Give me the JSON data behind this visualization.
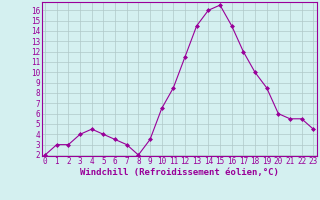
{
  "x": [
    0,
    1,
    2,
    3,
    4,
    5,
    6,
    7,
    8,
    9,
    10,
    11,
    12,
    13,
    14,
    15,
    16,
    17,
    18,
    19,
    20,
    21,
    22,
    23
  ],
  "y": [
    2,
    3,
    3,
    4,
    4.5,
    4,
    3.5,
    3,
    2,
    3.5,
    6.5,
    8.5,
    11.5,
    14.5,
    16,
    16.5,
    14.5,
    12,
    10,
    8.5,
    6,
    5.5,
    5.5,
    4.5
  ],
  "line_color": "#990099",
  "marker": "D",
  "marker_size": 2,
  "bg_color": "#d4f0f0",
  "grid_color": "#b0c8c8",
  "xlabel": "Windchill (Refroidissement éolien,°C)",
  "xlabel_color": "#990099",
  "tick_color": "#990099",
  "ylim_min": 2,
  "ylim_max": 16.5,
  "xlim_min": 0,
  "xlim_max": 23,
  "yticks": [
    2,
    3,
    4,
    5,
    6,
    7,
    8,
    9,
    10,
    11,
    12,
    13,
    14,
    15,
    16
  ],
  "xticks": [
    0,
    1,
    2,
    3,
    4,
    5,
    6,
    7,
    8,
    9,
    10,
    11,
    12,
    13,
    14,
    15,
    16,
    17,
    18,
    19,
    20,
    21,
    22,
    23
  ],
  "tick_fontsize": 5.5,
  "xlabel_fontsize": 6.5,
  "spine_color": "#990099"
}
